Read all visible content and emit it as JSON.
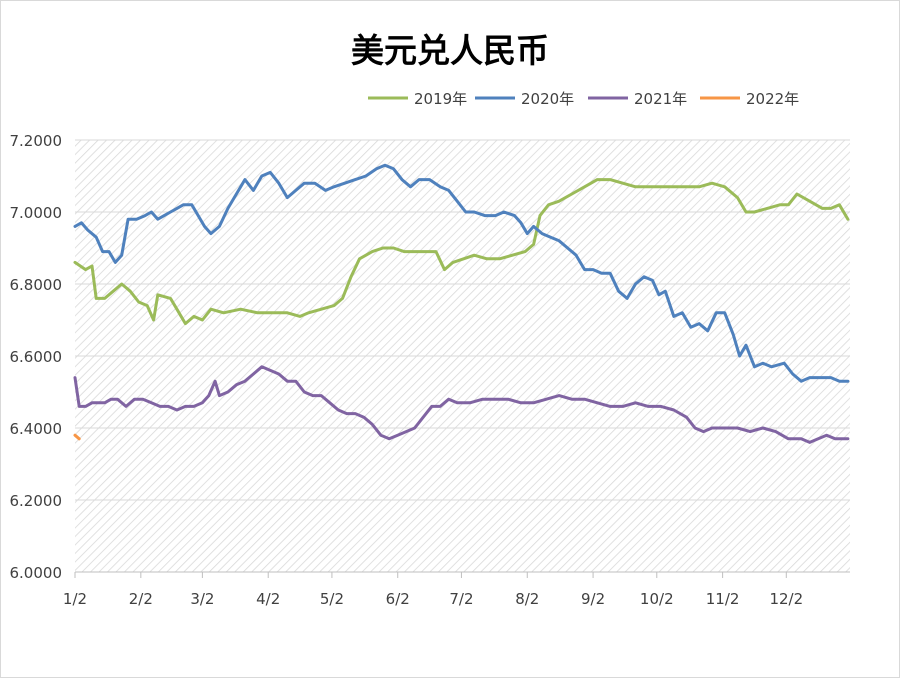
{
  "chart_data": {
    "type": "line",
    "title": "美元兑人民币",
    "xlabel": "",
    "ylabel": "",
    "ylim": [
      6.0,
      7.2
    ],
    "y_ticks": [
      "6.0000",
      "6.2000",
      "6.4000",
      "6.6000",
      "6.8000",
      "7.0000",
      "7.2000"
    ],
    "x_ticks": [
      "1/2",
      "2/2",
      "3/2",
      "4/2",
      "5/2",
      "6/2",
      "7/2",
      "8/2",
      "9/2",
      "10/2",
      "11/2",
      "12/2"
    ],
    "x_tick_days": [
      0,
      31,
      60,
      91,
      121,
      152,
      182,
      213,
      244,
      274,
      305,
      335
    ],
    "x_range_days": [
      0,
      365
    ],
    "grid": "horizontal",
    "legend_position": "top-right",
    "series": [
      {
        "name": "2019年",
        "color": "#9bbb59",
        "points": [
          [
            0,
            6.86
          ],
          [
            5,
            6.84
          ],
          [
            8,
            6.85
          ],
          [
            10,
            6.76
          ],
          [
            14,
            6.76
          ],
          [
            18,
            6.78
          ],
          [
            22,
            6.8
          ],
          [
            26,
            6.78
          ],
          [
            30,
            6.75
          ],
          [
            34,
            6.74
          ],
          [
            37,
            6.7
          ],
          [
            39,
            6.77
          ],
          [
            45,
            6.76
          ],
          [
            48,
            6.73
          ],
          [
            52,
            6.69
          ],
          [
            56,
            6.71
          ],
          [
            60,
            6.7
          ],
          [
            64,
            6.73
          ],
          [
            70,
            6.72
          ],
          [
            78,
            6.73
          ],
          [
            86,
            6.72
          ],
          [
            94,
            6.72
          ],
          [
            100,
            6.72
          ],
          [
            106,
            6.71
          ],
          [
            110,
            6.72
          ],
          [
            116,
            6.73
          ],
          [
            122,
            6.74
          ],
          [
            126,
            6.76
          ],
          [
            130,
            6.82
          ],
          [
            134,
            6.87
          ],
          [
            140,
            6.89
          ],
          [
            145,
            6.9
          ],
          [
            150,
            6.9
          ],
          [
            155,
            6.89
          ],
          [
            160,
            6.89
          ],
          [
            166,
            6.89
          ],
          [
            170,
            6.89
          ],
          [
            174,
            6.84
          ],
          [
            178,
            6.86
          ],
          [
            183,
            6.87
          ],
          [
            188,
            6.88
          ],
          [
            194,
            6.87
          ],
          [
            200,
            6.87
          ],
          [
            206,
            6.88
          ],
          [
            212,
            6.89
          ],
          [
            216,
            6.91
          ],
          [
            219,
            6.99
          ],
          [
            223,
            7.02
          ],
          [
            228,
            7.03
          ],
          [
            234,
            7.05
          ],
          [
            240,
            7.07
          ],
          [
            246,
            7.09
          ],
          [
            252,
            7.09
          ],
          [
            258,
            7.08
          ],
          [
            264,
            7.07
          ],
          [
            270,
            7.07
          ],
          [
            276,
            7.07
          ],
          [
            282,
            7.07
          ],
          [
            288,
            7.07
          ],
          [
            294,
            7.07
          ],
          [
            300,
            7.08
          ],
          [
            306,
            7.07
          ],
          [
            312,
            7.04
          ],
          [
            316,
            7.0
          ],
          [
            320,
            7.0
          ],
          [
            326,
            7.01
          ],
          [
            332,
            7.02
          ],
          [
            336,
            7.02
          ],
          [
            340,
            7.05
          ],
          [
            346,
            7.03
          ],
          [
            352,
            7.01
          ],
          [
            356,
            7.01
          ],
          [
            360,
            7.02
          ],
          [
            364,
            6.98
          ]
        ]
      },
      {
        "name": "2020年",
        "color": "#4f81bd",
        "points": [
          [
            0,
            6.96
          ],
          [
            3,
            6.97
          ],
          [
            6,
            6.95
          ],
          [
            10,
            6.93
          ],
          [
            13,
            6.89
          ],
          [
            16,
            6.89
          ],
          [
            19,
            6.86
          ],
          [
            22,
            6.88
          ],
          [
            25,
            6.98
          ],
          [
            29,
            6.98
          ],
          [
            33,
            6.99
          ],
          [
            36,
            7.0
          ],
          [
            39,
            6.98
          ],
          [
            42,
            6.99
          ],
          [
            45,
            7.0
          ],
          [
            48,
            7.01
          ],
          [
            51,
            7.02
          ],
          [
            55,
            7.02
          ],
          [
            58,
            6.99
          ],
          [
            61,
            6.96
          ],
          [
            64,
            6.94
          ],
          [
            68,
            6.96
          ],
          [
            72,
            7.01
          ],
          [
            76,
            7.05
          ],
          [
            80,
            7.09
          ],
          [
            84,
            7.06
          ],
          [
            88,
            7.1
          ],
          [
            92,
            7.11
          ],
          [
            96,
            7.08
          ],
          [
            100,
            7.04
          ],
          [
            104,
            7.06
          ],
          [
            108,
            7.08
          ],
          [
            113,
            7.08
          ],
          [
            118,
            7.06
          ],
          [
            122,
            7.07
          ],
          [
            127,
            7.08
          ],
          [
            132,
            7.09
          ],
          [
            137,
            7.1
          ],
          [
            142,
            7.12
          ],
          [
            146,
            7.13
          ],
          [
            150,
            7.12
          ],
          [
            154,
            7.09
          ],
          [
            158,
            7.07
          ],
          [
            162,
            7.09
          ],
          [
            167,
            7.09
          ],
          [
            172,
            7.07
          ],
          [
            176,
            7.06
          ],
          [
            180,
            7.03
          ],
          [
            184,
            7.0
          ],
          [
            188,
            7.0
          ],
          [
            193,
            6.99
          ],
          [
            198,
            6.99
          ],
          [
            202,
            7.0
          ],
          [
            207,
            6.99
          ],
          [
            210,
            6.97
          ],
          [
            213,
            6.94
          ],
          [
            216,
            6.96
          ],
          [
            220,
            6.94
          ],
          [
            224,
            6.93
          ],
          [
            228,
            6.92
          ],
          [
            232,
            6.9
          ],
          [
            236,
            6.88
          ],
          [
            240,
            6.84
          ],
          [
            244,
            6.84
          ],
          [
            248,
            6.83
          ],
          [
            252,
            6.83
          ],
          [
            256,
            6.78
          ],
          [
            260,
            6.76
          ],
          [
            264,
            6.8
          ],
          [
            268,
            6.82
          ],
          [
            272,
            6.81
          ],
          [
            275,
            6.77
          ],
          [
            278,
            6.78
          ],
          [
            282,
            6.71
          ],
          [
            286,
            6.72
          ],
          [
            290,
            6.68
          ],
          [
            294,
            6.69
          ],
          [
            298,
            6.67
          ],
          [
            302,
            6.72
          ],
          [
            306,
            6.72
          ],
          [
            310,
            6.66
          ],
          [
            313,
            6.6
          ],
          [
            316,
            6.63
          ],
          [
            320,
            6.57
          ],
          [
            324,
            6.58
          ],
          [
            328,
            6.57
          ],
          [
            334,
            6.58
          ],
          [
            338,
            6.55
          ],
          [
            342,
            6.53
          ],
          [
            346,
            6.54
          ],
          [
            352,
            6.54
          ],
          [
            356,
            6.54
          ],
          [
            360,
            6.53
          ],
          [
            364,
            6.53
          ]
        ]
      },
      {
        "name": "2021年",
        "color": "#8064a2",
        "points": [
          [
            0,
            6.54
          ],
          [
            2,
            6.46
          ],
          [
            5,
            6.46
          ],
          [
            8,
            6.47
          ],
          [
            11,
            6.47
          ],
          [
            14,
            6.47
          ],
          [
            17,
            6.48
          ],
          [
            20,
            6.48
          ],
          [
            24,
            6.46
          ],
          [
            28,
            6.48
          ],
          [
            32,
            6.48
          ],
          [
            36,
            6.47
          ],
          [
            40,
            6.46
          ],
          [
            44,
            6.46
          ],
          [
            48,
            6.45
          ],
          [
            52,
            6.46
          ],
          [
            56,
            6.46
          ],
          [
            60,
            6.47
          ],
          [
            63,
            6.49
          ],
          [
            66,
            6.53
          ],
          [
            68,
            6.49
          ],
          [
            72,
            6.5
          ],
          [
            76,
            6.52
          ],
          [
            80,
            6.53
          ],
          [
            84,
            6.55
          ],
          [
            88,
            6.57
          ],
          [
            92,
            6.56
          ],
          [
            96,
            6.55
          ],
          [
            100,
            6.53
          ],
          [
            104,
            6.53
          ],
          [
            108,
            6.5
          ],
          [
            112,
            6.49
          ],
          [
            116,
            6.49
          ],
          [
            120,
            6.47
          ],
          [
            124,
            6.45
          ],
          [
            128,
            6.44
          ],
          [
            132,
            6.44
          ],
          [
            136,
            6.43
          ],
          [
            140,
            6.41
          ],
          [
            144,
            6.38
          ],
          [
            148,
            6.37
          ],
          [
            152,
            6.38
          ],
          [
            156,
            6.39
          ],
          [
            160,
            6.4
          ],
          [
            164,
            6.43
          ],
          [
            168,
            6.46
          ],
          [
            172,
            6.46
          ],
          [
            176,
            6.48
          ],
          [
            180,
            6.47
          ],
          [
            186,
            6.47
          ],
          [
            192,
            6.48
          ],
          [
            198,
            6.48
          ],
          [
            204,
            6.48
          ],
          [
            210,
            6.47
          ],
          [
            216,
            6.47
          ],
          [
            222,
            6.48
          ],
          [
            228,
            6.49
          ],
          [
            234,
            6.48
          ],
          [
            240,
            6.48
          ],
          [
            246,
            6.47
          ],
          [
            252,
            6.46
          ],
          [
            258,
            6.46
          ],
          [
            264,
            6.47
          ],
          [
            270,
            6.46
          ],
          [
            276,
            6.46
          ],
          [
            282,
            6.45
          ],
          [
            288,
            6.43
          ],
          [
            292,
            6.4
          ],
          [
            296,
            6.39
          ],
          [
            300,
            6.4
          ],
          [
            306,
            6.4
          ],
          [
            312,
            6.4
          ],
          [
            318,
            6.39
          ],
          [
            324,
            6.4
          ],
          [
            330,
            6.39
          ],
          [
            336,
            6.37
          ],
          [
            342,
            6.37
          ],
          [
            346,
            6.36
          ],
          [
            350,
            6.37
          ],
          [
            354,
            6.38
          ],
          [
            358,
            6.37
          ],
          [
            364,
            6.37
          ]
        ]
      },
      {
        "name": "2022年",
        "color": "#f79646",
        "points": [
          [
            0,
            6.38
          ],
          [
            2,
            6.37
          ]
        ]
      }
    ]
  }
}
